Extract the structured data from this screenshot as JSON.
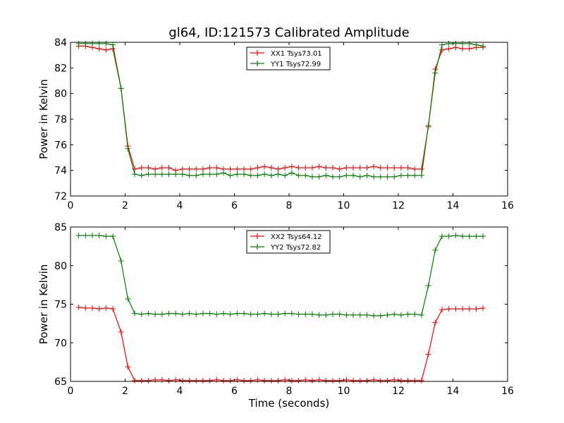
{
  "chart_data": [
    {
      "type": "line",
      "title": "gl64, ID:121573 Calibrated Amplitude",
      "xlabel": "",
      "ylabel": "Power in Kelvin",
      "xlim": [
        0,
        16
      ],
      "ylim": [
        72,
        84
      ],
      "xticks": [
        "0",
        "2",
        "4",
        "6",
        "8",
        "10",
        "12",
        "14",
        "16"
      ],
      "yticks": [
        "72",
        "74",
        "76",
        "78",
        "80",
        "82",
        "84"
      ],
      "grid": false,
      "legend": "top-center",
      "x": [
        0.3,
        0.55,
        0.8,
        1.05,
        1.3,
        1.55,
        1.85,
        2.1,
        2.35,
        2.6,
        2.85,
        3.1,
        3.35,
        3.6,
        3.85,
        4.1,
        4.35,
        4.6,
        4.85,
        5.1,
        5.35,
        5.6,
        5.85,
        6.1,
        6.35,
        6.6,
        6.85,
        7.1,
        7.35,
        7.6,
        7.85,
        8.1,
        8.35,
        8.6,
        8.85,
        9.1,
        9.35,
        9.6,
        9.85,
        10.1,
        10.35,
        10.6,
        10.85,
        11.1,
        11.35,
        11.6,
        11.85,
        12.1,
        12.35,
        12.6,
        12.85,
        13.1,
        13.35,
        13.6,
        13.85,
        14.1,
        14.35,
        14.6,
        14.85,
        15.1
      ],
      "series": [
        {
          "name": "XX1 Tsys73.01",
          "color": "#ff0000",
          "values": [
            83.7,
            83.7,
            83.6,
            83.5,
            83.4,
            83.5,
            80.4,
            75.9,
            74.1,
            74.2,
            74.2,
            74.1,
            74.2,
            74.2,
            74.0,
            74.1,
            74.1,
            74.1,
            74.1,
            74.2,
            74.2,
            74.1,
            74.1,
            74.1,
            74.1,
            74.1,
            74.2,
            74.3,
            74.2,
            74.1,
            74.2,
            74.3,
            74.2,
            74.2,
            74.2,
            74.3,
            74.2,
            74.2,
            74.1,
            74.2,
            74.2,
            74.2,
            74.2,
            74.3,
            74.2,
            74.2,
            74.2,
            74.2,
            74.2,
            74.1,
            74.1,
            77.4,
            81.9,
            83.4,
            83.5,
            83.6,
            83.5,
            83.5,
            83.6,
            83.6
          ]
        },
        {
          "name": "YY1 Tsys72.99",
          "color": "#008000",
          "values": [
            83.9,
            83.9,
            83.9,
            83.9,
            83.9,
            83.8,
            80.4,
            75.7,
            73.7,
            73.6,
            73.7,
            73.7,
            73.7,
            73.7,
            73.7,
            73.7,
            73.6,
            73.6,
            73.7,
            73.7,
            73.7,
            73.8,
            73.6,
            73.7,
            73.7,
            73.6,
            73.6,
            73.7,
            73.6,
            73.7,
            73.6,
            73.8,
            73.6,
            73.6,
            73.5,
            73.5,
            73.6,
            73.5,
            73.5,
            73.6,
            73.6,
            73.5,
            73.6,
            73.5,
            73.5,
            73.5,
            73.5,
            73.6,
            73.6,
            73.6,
            73.6,
            77.5,
            81.6,
            83.8,
            83.9,
            83.9,
            83.9,
            83.9,
            83.8,
            83.7
          ]
        }
      ]
    },
    {
      "type": "line",
      "title": "",
      "xlabel": "Time (seconds)",
      "ylabel": "Power in Kelvin",
      "xlim": [
        0,
        16
      ],
      "ylim": [
        65,
        85
      ],
      "xticks": [
        "0",
        "2",
        "4",
        "6",
        "8",
        "10",
        "12",
        "14",
        "16"
      ],
      "yticks": [
        "65",
        "70",
        "75",
        "80",
        "85"
      ],
      "grid": false,
      "legend": "top-center",
      "x": [
        0.3,
        0.55,
        0.8,
        1.05,
        1.3,
        1.55,
        1.85,
        2.1,
        2.35,
        2.6,
        2.85,
        3.1,
        3.35,
        3.6,
        3.85,
        4.1,
        4.35,
        4.6,
        4.85,
        5.1,
        5.35,
        5.6,
        5.85,
        6.1,
        6.35,
        6.6,
        6.85,
        7.1,
        7.35,
        7.6,
        7.85,
        8.1,
        8.35,
        8.6,
        8.85,
        9.1,
        9.35,
        9.6,
        9.85,
        10.1,
        10.35,
        10.6,
        10.85,
        11.1,
        11.35,
        11.6,
        11.85,
        12.1,
        12.35,
        12.6,
        12.85,
        13.1,
        13.35,
        13.6,
        13.85,
        14.1,
        14.35,
        14.6,
        14.85,
        15.1
      ],
      "series": [
        {
          "name": "XX2 Tsys64.12",
          "color": "#ff0000",
          "values": [
            74.6,
            74.5,
            74.5,
            74.4,
            74.5,
            74.4,
            71.4,
            66.9,
            65.1,
            65.1,
            65.1,
            65.2,
            65.2,
            65.1,
            65.2,
            65.1,
            65.1,
            65.1,
            65.1,
            65.1,
            65.2,
            65.1,
            65.1,
            65.2,
            65.1,
            65.1,
            65.2,
            65.1,
            65.1,
            65.1,
            65.2,
            65.1,
            65.1,
            65.2,
            65.1,
            65.2,
            65.1,
            65.1,
            65.1,
            65.2,
            65.1,
            65.1,
            65.1,
            65.2,
            65.1,
            65.1,
            65.2,
            65.1,
            65.1,
            65.1,
            65.1,
            68.5,
            72.6,
            74.3,
            74.4,
            74.4,
            74.4,
            74.4,
            74.4,
            74.5
          ]
        },
        {
          "name": "YY2 Tsys72.82",
          "color": "#008000",
          "values": [
            83.9,
            83.9,
            83.9,
            83.9,
            83.8,
            83.8,
            80.6,
            75.7,
            73.8,
            73.7,
            73.8,
            73.7,
            73.7,
            73.8,
            73.8,
            73.7,
            73.8,
            73.7,
            73.8,
            73.8,
            73.7,
            73.8,
            73.7,
            73.8,
            73.8,
            73.7,
            73.7,
            73.8,
            73.7,
            73.7,
            73.8,
            73.8,
            73.7,
            73.7,
            73.7,
            73.6,
            73.6,
            73.7,
            73.7,
            73.6,
            73.6,
            73.6,
            73.6,
            73.5,
            73.5,
            73.6,
            73.7,
            73.6,
            73.7,
            73.7,
            73.6,
            77.4,
            82.0,
            83.8,
            83.8,
            83.9,
            83.8,
            83.8,
            83.8,
            83.8
          ]
        }
      ]
    }
  ]
}
